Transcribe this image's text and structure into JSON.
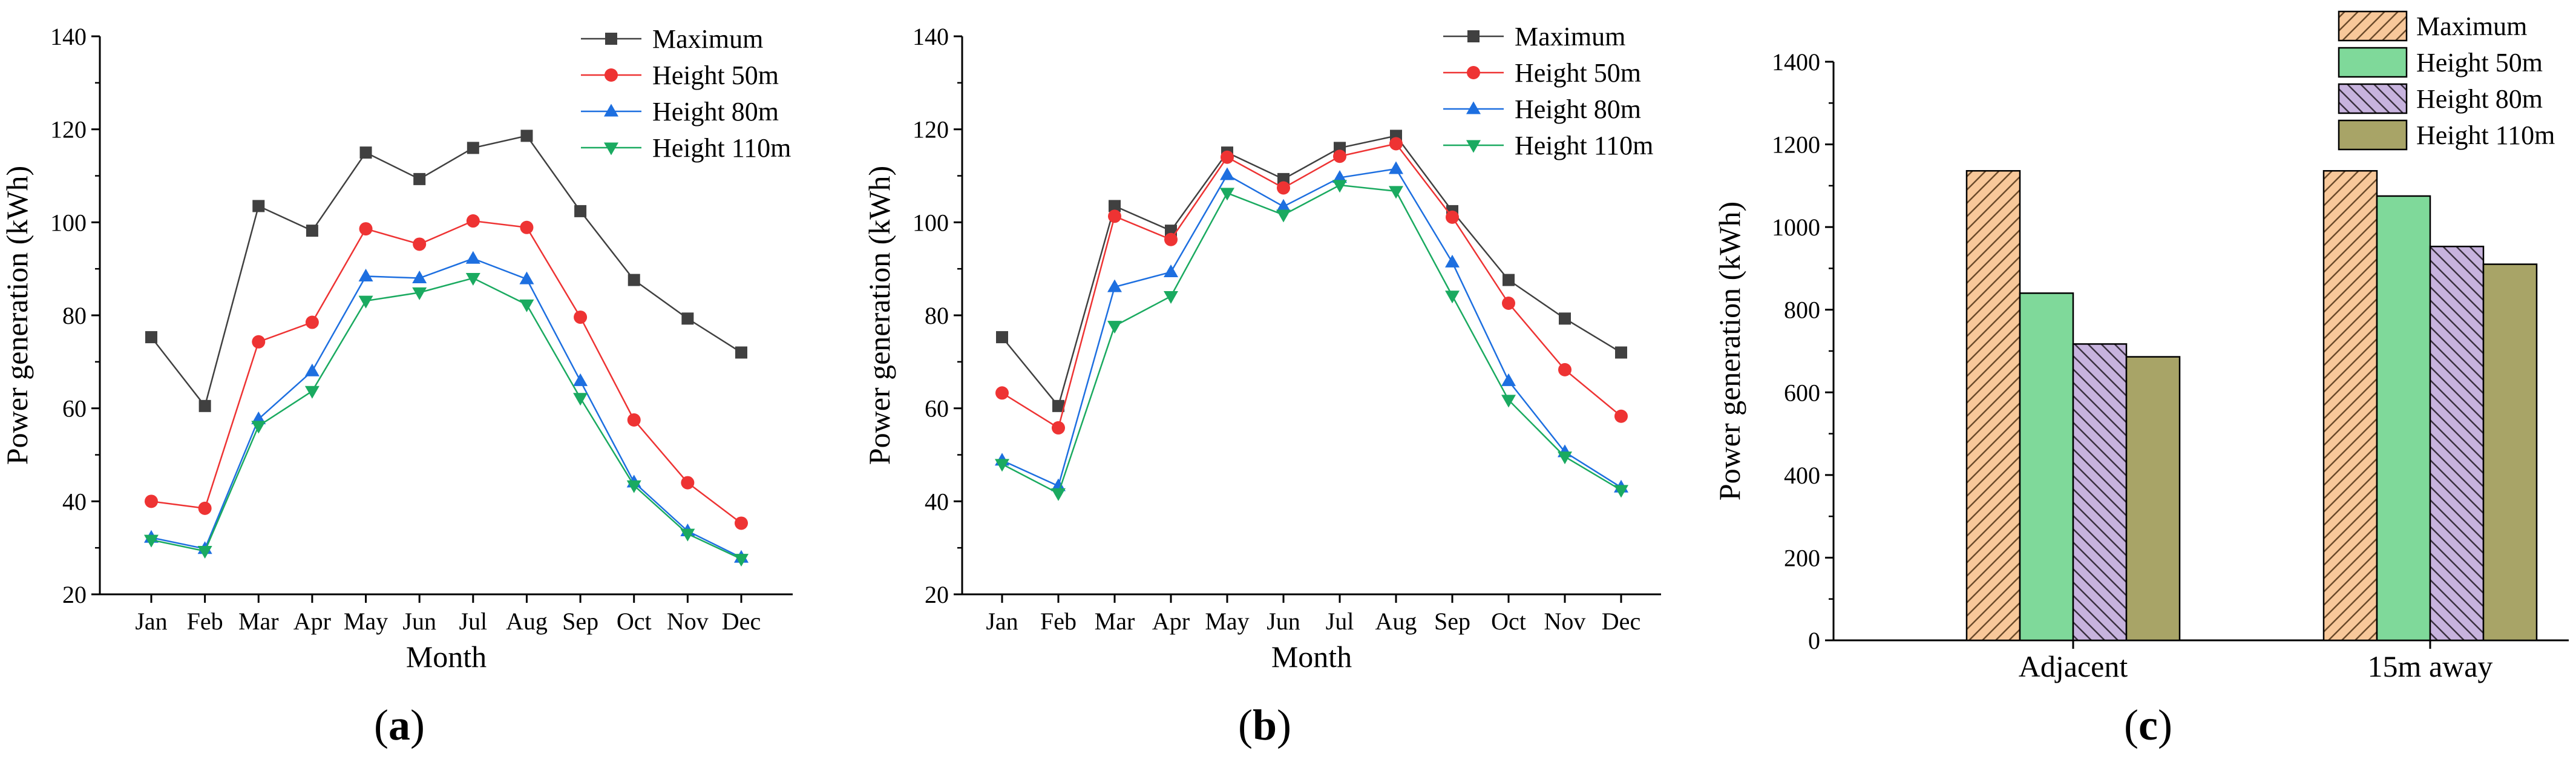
{
  "chart_data": [
    {
      "panel": "a",
      "type": "line",
      "xlabel": "Month",
      "ylabel": "Power generation (kWh)",
      "ylim": [
        20,
        140
      ],
      "yticks": [
        20,
        40,
        60,
        80,
        100,
        120,
        140
      ],
      "categories": [
        "Jan",
        "Feb",
        "Mar",
        "Apr",
        "May",
        "Jun",
        "Jul",
        "Aug",
        "Sep",
        "Oct",
        "Nov",
        "Dec"
      ],
      "legend_position": "top-right",
      "series": [
        {
          "name": "Maximum",
          "marker": "square",
          "color": "#404040",
          "values": [
            75.3,
            60.5,
            103.5,
            98.2,
            115.0,
            109.3,
            116.0,
            118.6,
            102.4,
            87.6,
            79.3,
            72.0
          ]
        },
        {
          "name": "Height 50m",
          "marker": "circle",
          "color": "#ee3333",
          "values": [
            40.0,
            38.5,
            74.3,
            78.5,
            98.6,
            95.3,
            100.3,
            98.9,
            79.6,
            57.5,
            44.0,
            35.3
          ]
        },
        {
          "name": "Height 80m",
          "marker": "triangle-up",
          "color": "#1d6fe0",
          "values": [
            32.2,
            29.8,
            57.7,
            68.0,
            88.4,
            88.0,
            92.2,
            87.8,
            65.9,
            44.1,
            33.6,
            27.9
          ]
        },
        {
          "name": "Height 110m",
          "marker": "triangle-down",
          "color": "#1aaa60",
          "values": [
            31.7,
            29.3,
            56.2,
            63.7,
            83.1,
            84.9,
            88.0,
            82.3,
            62.2,
            43.4,
            33.0,
            27.6
          ]
        }
      ]
    },
    {
      "panel": "b",
      "type": "line",
      "xlabel": "Month",
      "ylabel": "Power generation (kWh)",
      "ylim": [
        20,
        140
      ],
      "yticks": [
        20,
        40,
        60,
        80,
        100,
        120,
        140
      ],
      "categories": [
        "Jan",
        "Feb",
        "Mar",
        "Apr",
        "May",
        "Jun",
        "Jul",
        "Aug",
        "Sep",
        "Oct",
        "Nov",
        "Dec"
      ],
      "legend_position": "top-right",
      "series": [
        {
          "name": "Maximum",
          "marker": "square",
          "color": "#404040",
          "values": [
            75.3,
            60.5,
            103.5,
            98.2,
            115.0,
            109.3,
            116.0,
            118.6,
            102.4,
            87.6,
            79.3,
            72.0
          ]
        },
        {
          "name": "Height 50m",
          "marker": "circle",
          "color": "#ee3333",
          "values": [
            63.3,
            55.8,
            101.3,
            96.3,
            114.0,
            107.4,
            114.2,
            116.9,
            101.1,
            82.6,
            68.3,
            58.3
          ]
        },
        {
          "name": "Height 80m",
          "marker": "triangle-up",
          "color": "#1d6fe0",
          "values": [
            48.8,
            43.3,
            86.1,
            89.3,
            110.2,
            103.4,
            109.6,
            111.5,
            91.4,
            65.9,
            50.6,
            43.0
          ]
        },
        {
          "name": "Height 110m",
          "marker": "triangle-down",
          "color": "#1aaa60",
          "values": [
            48.0,
            41.7,
            77.7,
            84.1,
            106.3,
            101.6,
            108.0,
            106.7,
            84.2,
            61.8,
            49.6,
            42.4
          ]
        }
      ]
    },
    {
      "panel": "c",
      "type": "bar",
      "xlabel": "",
      "ylabel": "Power generation (kWh)",
      "ylim": [
        0,
        1400
      ],
      "yticks": [
        0,
        200,
        400,
        600,
        800,
        1000,
        1200,
        1400
      ],
      "categories": [
        "Adjacent",
        "15m away"
      ],
      "legend_position": "top-right",
      "series": [
        {
          "name": "Maximum",
          "color": "#f8c89a",
          "pattern": "hatch-forward",
          "values": [
            1136,
            1136
          ]
        },
        {
          "name": "Height 50m",
          "color": "#7fd99a",
          "pattern": "none",
          "values": [
            840,
            1075
          ]
        },
        {
          "name": "Height 80m",
          "color": "#c7b3de",
          "pattern": "hatch-back",
          "values": [
            717,
            953
          ]
        },
        {
          "name": "Height 110m",
          "color": "#a8a467",
          "pattern": "none",
          "values": [
            686,
            910
          ]
        }
      ]
    }
  ],
  "panel_labels": {
    "a": {
      "open": "(",
      "letter": "a",
      "close": ")"
    },
    "b": {
      "open": "(",
      "letter": "b",
      "close": ")"
    },
    "c": {
      "open": "(",
      "letter": "c",
      "close": ")"
    }
  }
}
